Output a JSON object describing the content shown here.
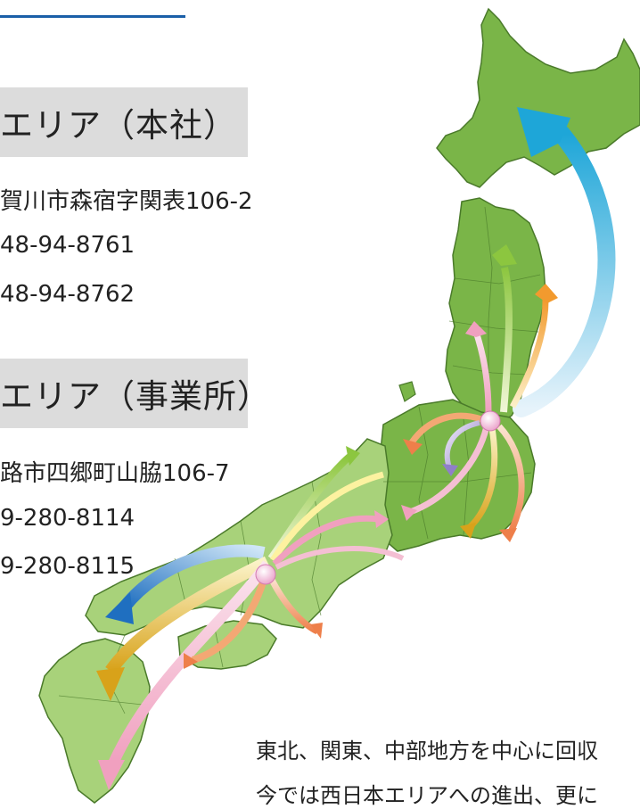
{
  "headquarters": {
    "banner": "エリア（本社）",
    "address": "賀川市森宿字関表106-2",
    "tel": "48-94-8761",
    "fax": "48-94-8762"
  },
  "office": {
    "banner": "エリア（事業所）",
    "address": "路市四郷町山脇106-7",
    "tel": "9-280-8114",
    "fax": "9-280-8115"
  },
  "description": {
    "line1": "東北、関東、中部地方を中心に回収",
    "line2": "今では西日本エリアへの進出、更に"
  },
  "colors": {
    "map_green": "#7ab548",
    "map_light_green": "#a8d27a",
    "map_border": "#4a7a2a",
    "accent_blue": "#1a5fa8",
    "hub_pink": "#f2b8d8"
  }
}
